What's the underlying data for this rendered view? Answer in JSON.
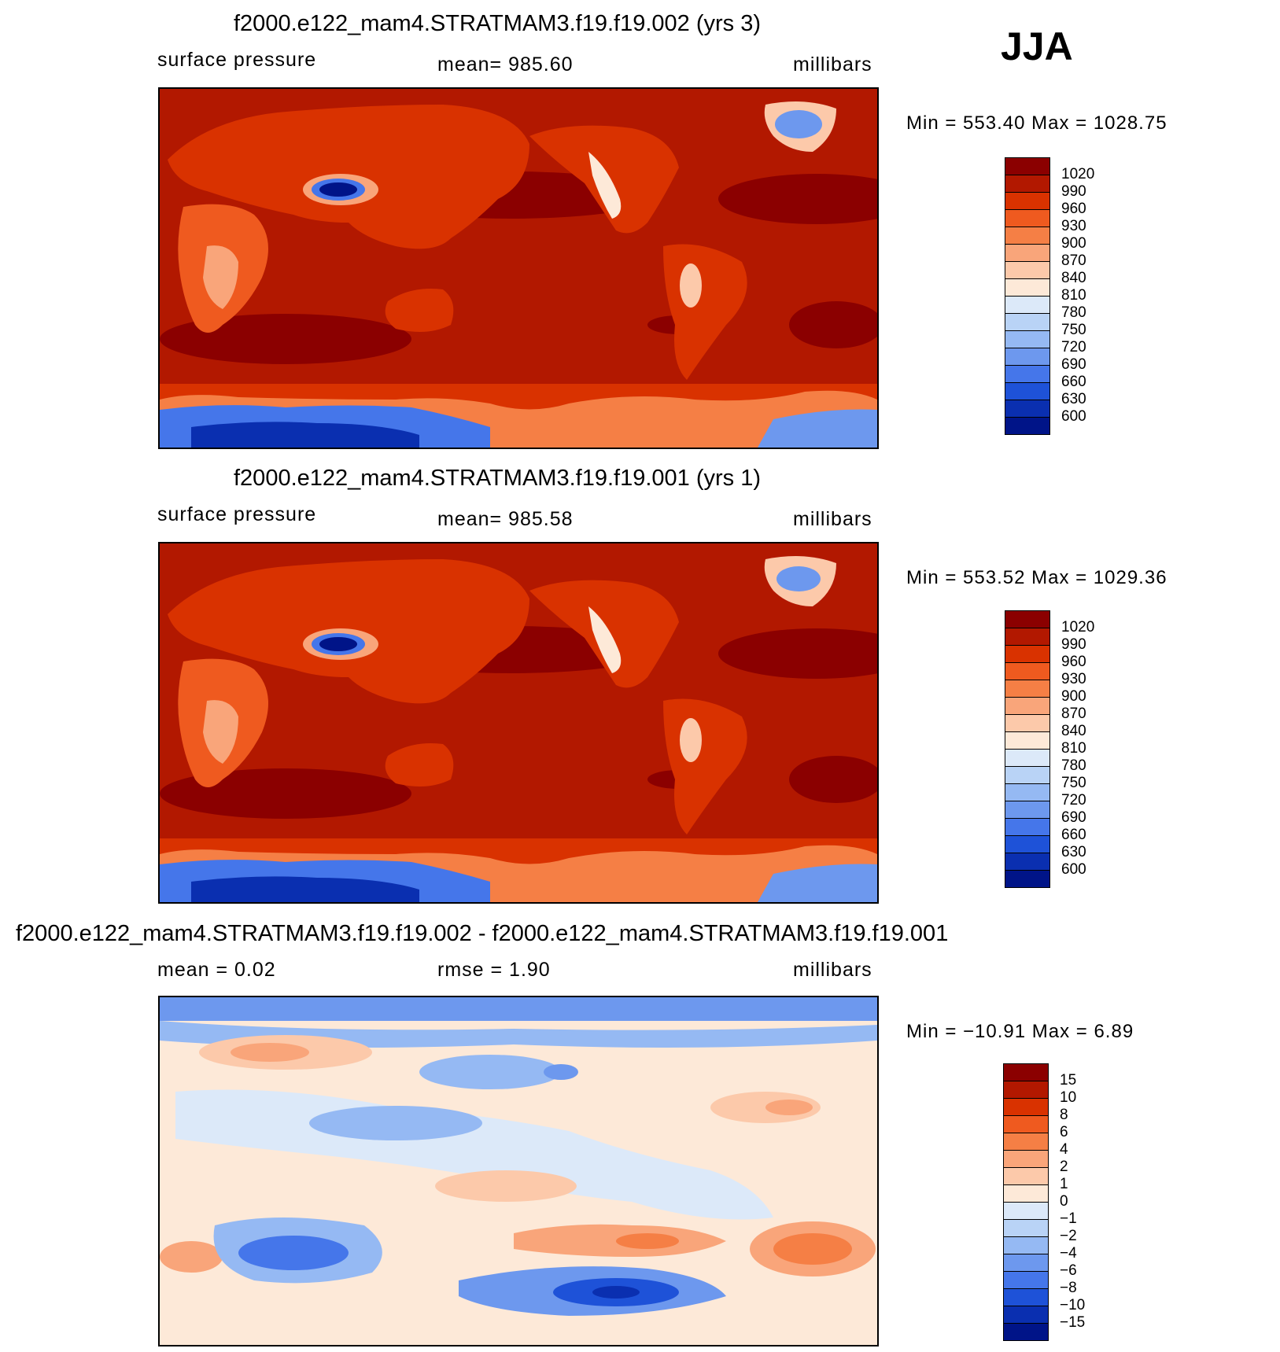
{
  "season": "JJA",
  "panels": [
    {
      "title": "f2000.e122_mam4.STRATMAM3.f19.f19.002 (yrs 3)",
      "left_label": "surface pressure",
      "center_label": "mean=  985.60",
      "units": "millibars",
      "minmax": "Min  =  553.40  Max  =  1028.75"
    },
    {
      "title": "f2000.e122_mam4.STRATMAM3.f19.f19.001 (yrs 1)",
      "left_label": "surface pressure",
      "center_label": "mean=  985.58",
      "units": "millibars",
      "minmax": "Min  =  553.52  Max  =  1029.36"
    },
    {
      "title": "f2000.e122_mam4.STRATMAM3.f19.f19.002 - f2000.e122_mam4.STRATMAM3.f19.f19.001",
      "left_label": "mean  =     0.02",
      "center_label": "rmse  =      1.90",
      "units": "millibars",
      "minmax": "Min  =  −10.91  Max  =      6.89"
    }
  ],
  "chart_data": [
    {
      "type": "heatmap",
      "title": "f2000.e122_mam4.STRATMAM3.f19.f19.002 (yrs 3)",
      "variable": "surface pressure",
      "units": "millibars",
      "mean": 985.6,
      "min": 553.4,
      "max": 1028.75,
      "colorbar_levels": [
        "1020",
        "990",
        "960",
        "930",
        "900",
        "870",
        "840",
        "810",
        "780",
        "750",
        "720",
        "690",
        "660",
        "630",
        "600"
      ],
      "colorbar_colors": [
        "#8b0000",
        "#b21800",
        "#d93200",
        "#ef5a1f",
        "#f57f45",
        "#f9a57a",
        "#fcc9aa",
        "#fde9d8",
        "#dce9f9",
        "#b9d3f6",
        "#95b9f3",
        "#6d98ee",
        "#4576ea",
        "#1e52d8",
        "#0a2fb0",
        "#001488"
      ]
    },
    {
      "type": "heatmap",
      "title": "f2000.e122_mam4.STRATMAM3.f19.f19.001 (yrs 1)",
      "variable": "surface pressure",
      "units": "millibars",
      "mean": 985.58,
      "min": 553.52,
      "max": 1029.36,
      "colorbar_levels": [
        "1020",
        "990",
        "960",
        "930",
        "900",
        "870",
        "840",
        "810",
        "780",
        "750",
        "720",
        "690",
        "660",
        "630",
        "600"
      ],
      "colorbar_colors": [
        "#8b0000",
        "#b21800",
        "#d93200",
        "#ef5a1f",
        "#f57f45",
        "#f9a57a",
        "#fcc9aa",
        "#fde9d8",
        "#dce9f9",
        "#b9d3f6",
        "#95b9f3",
        "#6d98ee",
        "#4576ea",
        "#1e52d8",
        "#0a2fb0",
        "#001488"
      ]
    },
    {
      "type": "heatmap",
      "title": "f2000.e122_mam4.STRATMAM3.f19.f19.002 - f2000.e122_mam4.STRATMAM3.f19.f19.001",
      "units": "millibars",
      "mean": 0.02,
      "rmse": 1.9,
      "min": -10.91,
      "max": 6.89,
      "colorbar_levels": [
        "15",
        "10",
        "8",
        "6",
        "4",
        "2",
        "1",
        "0",
        "−1",
        "−2",
        "−4",
        "−6",
        "−8",
        "−10",
        "−15"
      ],
      "colorbar_colors": [
        "#8b0000",
        "#b21800",
        "#d93200",
        "#ef5a1f",
        "#f57f45",
        "#f9a57a",
        "#fcc9aa",
        "#fde9d8",
        "#dce9f9",
        "#b9d3f6",
        "#95b9f3",
        "#6d98ee",
        "#4576ea",
        "#1e52d8",
        "#0a2fb0",
        "#001488"
      ]
    }
  ]
}
